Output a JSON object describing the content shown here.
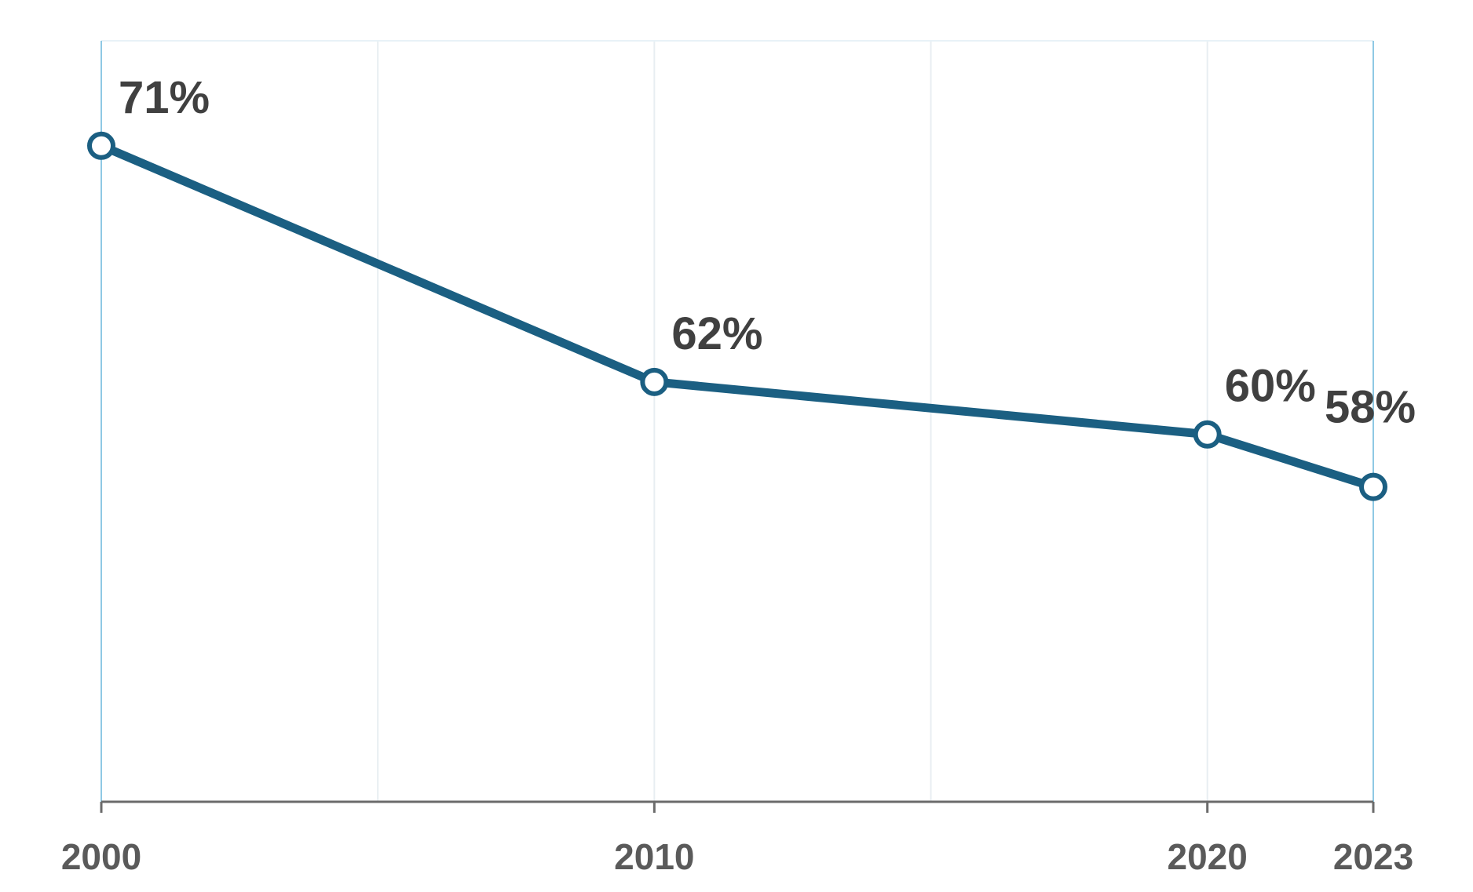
{
  "chart_data": {
    "type": "line",
    "title": "",
    "xlabel": "",
    "ylabel": "",
    "x": [
      2000,
      2010,
      2020,
      2023
    ],
    "x_tick_labels": [
      "2000",
      "2010",
      "2020",
      "2023"
    ],
    "series": [
      {
        "values": [
          71,
          62,
          60,
          58
        ],
        "data_labels": [
          "71%",
          "62%",
          "60%",
          "58%"
        ],
        "color": "#1b5f82"
      }
    ],
    "ylim": [
      46,
      75
    ],
    "grid": "vertical",
    "legend": "none"
  }
}
